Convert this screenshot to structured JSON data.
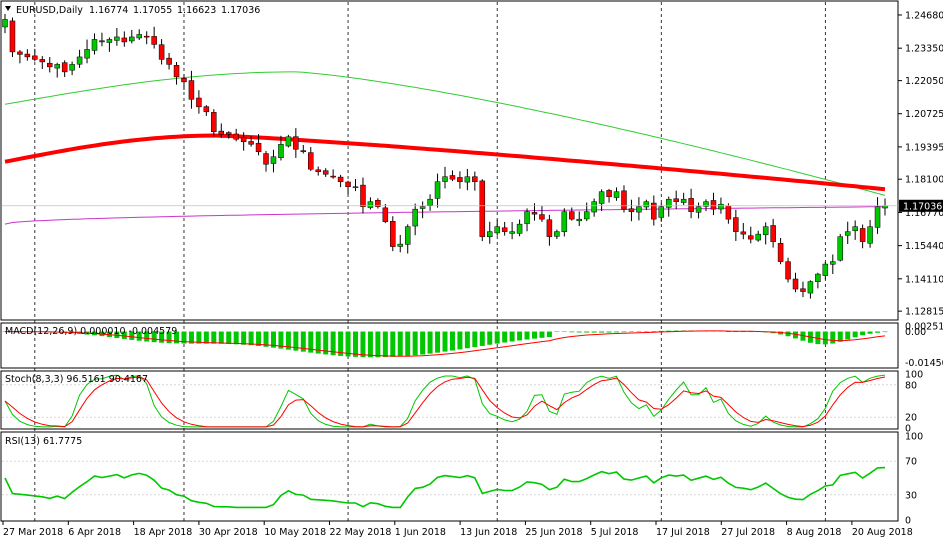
{
  "chart_data": [
    {
      "type": "candlestick",
      "panel": "main",
      "header": {
        "symbol": "EURUSD,Daily",
        "open": "1.16774",
        "high": "1.17055",
        "low": "1.16623",
        "close": "1.17036"
      },
      "price_box": "1.17036",
      "y_ticks": [
        "1.24680",
        "1.23350",
        "1.22050",
        "1.20725",
        "1.19395",
        "1.18100",
        "1.16770",
        "1.15440",
        "1.14110",
        "1.12815"
      ],
      "ylim": [
        1.125,
        1.252
      ],
      "x_ticks": [
        "27 Mar 2018",
        "6 Apr 2018",
        "18 Apr 2018",
        "30 Apr 2018",
        "10 May 2018",
        "22 May 2018",
        "1 Jun 2018",
        "13 Jun 2018",
        "25 Jun 2018",
        "5 Jul 2018",
        "17 Jul 2018",
        "27 Jul 2018",
        "8 Aug 2018",
        "20 Aug 2018"
      ],
      "colors": {
        "up": "#00c800",
        "down": "#ff0000",
        "ma_fast": "#32cd32",
        "ma_slow": "#ff0000",
        "ma_long": "#cc33cc"
      },
      "close_series": [
        1.245,
        1.232,
        1.231,
        1.23,
        1.229,
        1.228,
        1.226,
        1.227,
        1.224,
        1.227,
        1.23,
        1.233,
        1.237,
        1.236,
        1.237,
        1.238,
        1.236,
        1.238,
        1.239,
        1.238,
        1.235,
        1.229,
        1.227,
        1.222,
        1.22,
        1.213,
        1.21,
        1.208,
        1.2,
        1.199,
        1.199,
        1.197,
        1.196,
        1.195,
        1.192,
        1.187,
        1.19,
        1.195,
        1.198,
        1.193,
        1.192,
        1.185,
        1.184,
        1.183,
        1.182,
        1.18,
        1.178,
        1.178,
        1.17,
        1.172,
        1.17,
        1.164,
        1.154,
        1.155,
        1.162,
        1.169,
        1.17,
        1.173,
        1.18,
        1.182,
        1.181,
        1.18,
        1.182,
        1.18,
        1.158,
        1.16,
        1.162,
        1.16,
        1.16,
        1.163,
        1.168,
        1.167,
        1.165,
        1.158,
        1.16,
        1.168,
        1.165,
        1.165,
        1.168,
        1.172,
        1.176,
        1.174,
        1.176,
        1.169,
        1.168,
        1.17,
        1.172,
        1.165,
        1.17,
        1.173,
        1.172,
        1.173,
        1.168,
        1.17,
        1.172,
        1.169,
        1.171,
        1.165,
        1.16,
        1.159,
        1.157,
        1.159,
        1.162,
        1.156,
        1.148,
        1.141,
        1.137,
        1.136,
        1.14,
        1.143,
        1.147,
        1.148,
        1.158,
        1.16,
        1.162,
        1.156,
        1.162,
        1.17,
        1.1704
      ],
      "sma_fast": {
        "start": 1.211,
        "mid": 1.224,
        "end": 1.1745
      },
      "sma_slow": {
        "start": 1.188,
        "peak": 1.1985,
        "end": 1.177
      },
      "sma_long": {
        "start": 1.163,
        "end": 1.17
      }
    },
    {
      "type": "histogram",
      "panel": "macd",
      "label": "MACD(12,26,9) 0.000010 -0.004579",
      "y_ticks": [
        "0.002516",
        "0.00",
        "-0.014501"
      ],
      "ylim": [
        -0.0165,
        0.0035
      ],
      "colors": {
        "bar": "#00c800",
        "signal": "#ff0000"
      }
    },
    {
      "type": "line",
      "panel": "stoch",
      "label": "Stoch(8,3,3) 96.5161 90.4167",
      "y_ticks": [
        "100",
        "80",
        "20",
        "0"
      ],
      "ylim": [
        0,
        100
      ],
      "colors": {
        "main": "#00c800",
        "signal": "#ff0000"
      }
    },
    {
      "type": "line",
      "panel": "rsi",
      "label": "RSI(13) 61.7775",
      "y_ticks": [
        "100",
        "70",
        "30",
        "0"
      ],
      "ylim": [
        0,
        100
      ],
      "colors": {
        "line": "#00c800"
      }
    }
  ]
}
